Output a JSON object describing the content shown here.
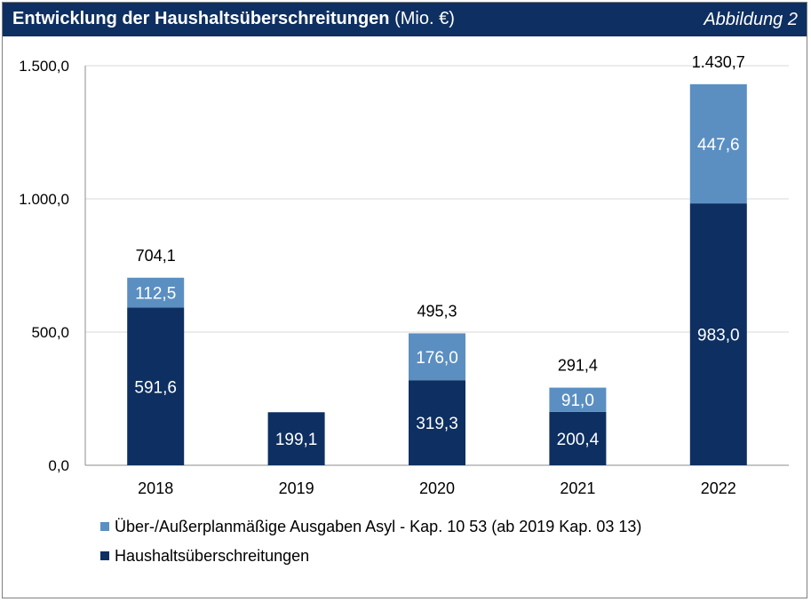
{
  "header": {
    "title_main": "Entwicklung der Haushaltsüberschreitungen",
    "title_unit": "(Mio. €)",
    "figure_label": "Abbildung 2"
  },
  "colors": {
    "header_bg": "#0e2f61",
    "dark": "#0e2f61",
    "light": "#5b8fc2",
    "grid": "#d9d9d9"
  },
  "chart_data": {
    "type": "bar",
    "stacked": true,
    "title": "Entwicklung der Haushaltsüberschreitungen (Mio. €)",
    "categories": [
      "2018",
      "2019",
      "2020",
      "2021",
      "2022"
    ],
    "series": [
      {
        "name": "Haushaltsüberschreitungen",
        "values": [
          591.6,
          199.1,
          319.3,
          200.4,
          983.0
        ],
        "labels": [
          "591,6",
          "199,1",
          "319,3",
          "200,4",
          "983,0"
        ],
        "color": "#0e2f61"
      },
      {
        "name": "Über-/Außerplanmäßige Ausgaben Asyl - Kap. 10 53 (ab 2019 Kap. 03 13)",
        "values": [
          112.5,
          0,
          176.0,
          91.0,
          447.6
        ],
        "labels": [
          "112,5",
          "",
          "176,0",
          "91,0",
          "447,6"
        ],
        "color": "#5b8fc2"
      }
    ],
    "totals": [
      704.1,
      null,
      495.3,
      291.4,
      1430.7
    ],
    "total_labels": [
      "704,1",
      "",
      "495,3",
      "291,4",
      "1.430,7"
    ],
    "ylim": [
      0,
      1500
    ],
    "yticks": [
      0,
      500,
      1000,
      1500
    ],
    "ytick_labels": [
      "0,0",
      "500,0",
      "1.000,0",
      "1.500,0"
    ],
    "grid": true,
    "legend": [
      {
        "label": "Über-/Außerplanmäßige Ausgaben Asyl - Kap. 10 53 (ab 2019 Kap. 03 13)",
        "color": "#5b8fc2"
      },
      {
        "label": "Haushaltsüberschreitungen",
        "color": "#0e2f61"
      }
    ],
    "legend_position": "bottom-left"
  }
}
